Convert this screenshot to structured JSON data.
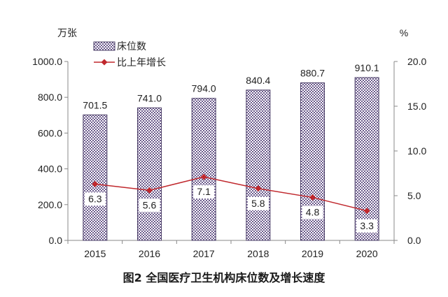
{
  "caption": "图2 全国医疗卫生机构床位数及增长速度",
  "chart_data": {
    "type": "bar+line",
    "categories": [
      "2015",
      "2016",
      "2017",
      "2018",
      "2019",
      "2020"
    ],
    "series": [
      {
        "name": "床位数",
        "type": "bar",
        "axis": "left",
        "values": [
          701.5,
          741.0,
          794.0,
          840.4,
          880.7,
          910.1
        ],
        "labels": [
          "701.5",
          "741.0",
          "794.0",
          "840.4",
          "880.7",
          "910.1"
        ]
      },
      {
        "name": "比上年增长",
        "type": "line",
        "axis": "right",
        "values": [
          6.3,
          5.6,
          7.1,
          5.8,
          4.8,
          3.3
        ],
        "labels": [
          "6.3",
          "5.6",
          "7.1",
          "5.8",
          "4.8",
          "3.3"
        ]
      }
    ],
    "left_axis": {
      "unit": "万张",
      "ylim": [
        0,
        1000
      ],
      "ticks": [
        0,
        200,
        400,
        600,
        800,
        1000
      ],
      "tick_labels": [
        "0.0",
        "200.0",
        "400.0",
        "600.0",
        "800.0",
        "1000.0"
      ]
    },
    "right_axis": {
      "unit": "%",
      "ylim": [
        0,
        20
      ],
      "ticks": [
        0,
        5,
        10,
        15,
        20
      ],
      "tick_labels": [
        "0.0",
        "5.0",
        "10.0",
        "15.0",
        "20.0"
      ]
    },
    "legend_position": "top-left",
    "grid": false,
    "colors": {
      "bar_fill": "#6b5a8c",
      "bar_border": "#4a3d66",
      "line": "#c0282d",
      "marker": "#c0282d",
      "axis": "#888888"
    }
  }
}
